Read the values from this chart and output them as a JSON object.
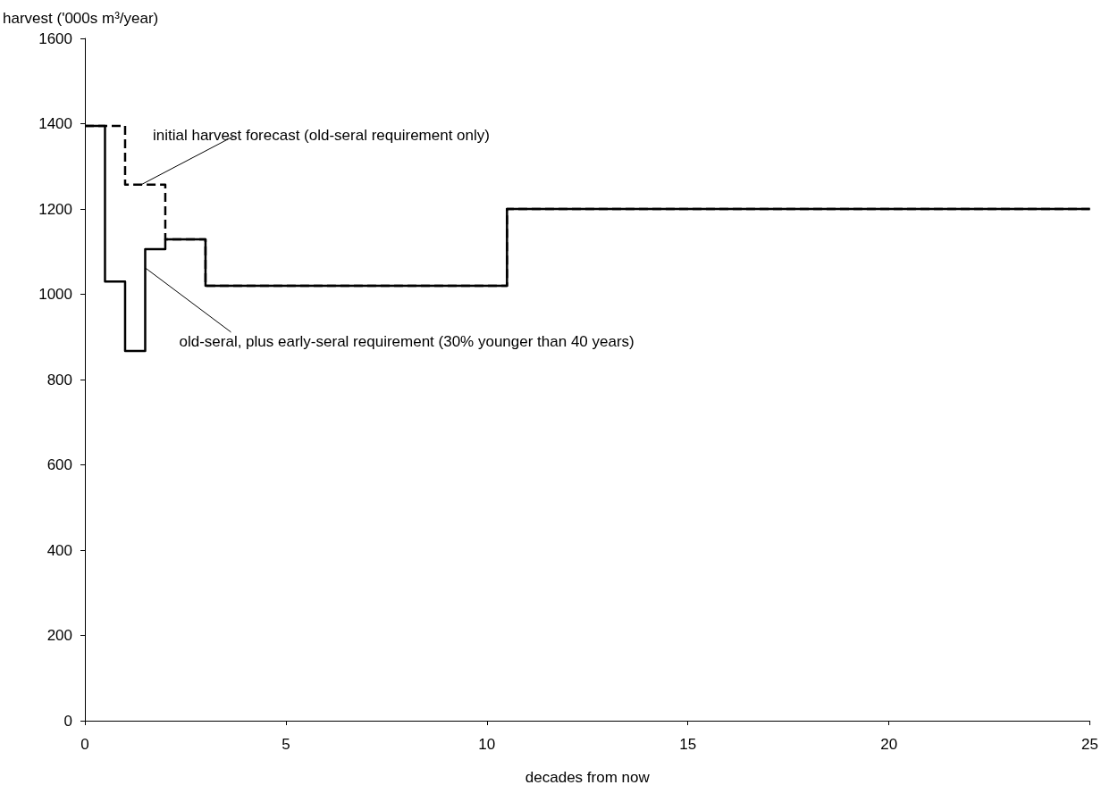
{
  "chart_data": {
    "type": "step",
    "xlabel": "decades from now",
    "ylabel": "harvest ('000s m³/year)",
    "xlim": [
      0,
      25
    ],
    "xticks": [
      0,
      5,
      10,
      15,
      20,
      25
    ],
    "ylim": [
      0,
      1600
    ],
    "yticks": [
      0,
      200,
      400,
      600,
      800,
      1000,
      1200,
      1400,
      1600
    ],
    "grid": false,
    "marker": "none",
    "series": [
      {
        "x": [
          0,
          1,
          2,
          3,
          10.5,
          25
        ],
        "values": [
          1395,
          1257,
          1129,
          1020,
          1200,
          1200
        ],
        "color": "#000000",
        "line_style": "dashed"
      },
      {
        "x": [
          0,
          0.5,
          1,
          1.5,
          2,
          3,
          10.5,
          25
        ],
        "values": [
          1395,
          1030,
          867,
          1106,
          1129,
          1020,
          1200,
          1200
        ],
        "color": "#000000",
        "line_style": "solid"
      }
    ],
    "annotations": [
      {
        "text": "initial harvest forecast (old-seral requirement only)",
        "x": 1.4,
        "y": 1257
      },
      {
        "text": "old-seral, plus early-seral requirement (30% younger than 40 years)",
        "x": 1.5,
        "y": 1062
      }
    ]
  }
}
